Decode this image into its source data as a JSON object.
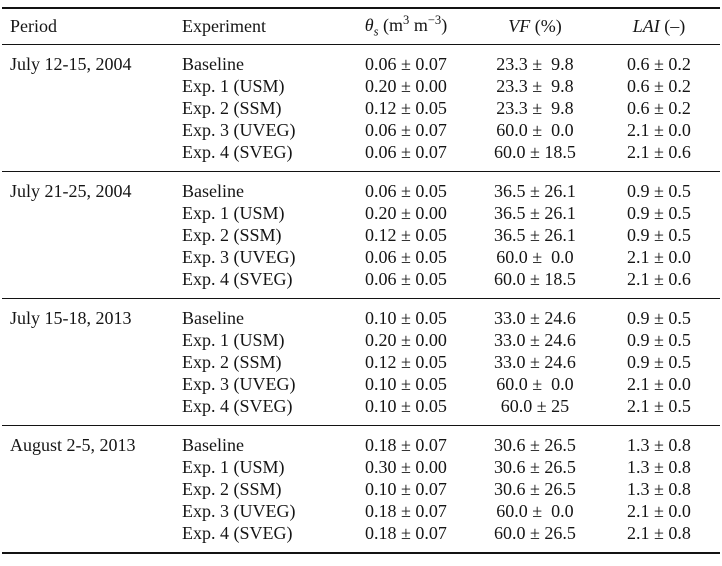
{
  "table": {
    "header": {
      "period": "Period",
      "experiment": "Experiment",
      "theta": {
        "symbol": "θ",
        "sub": "s",
        "unit_open": " (m",
        "sup1": "3",
        "unit_mid": " m",
        "sup2": "−3",
        "unit_close": ")"
      },
      "vf": {
        "name": "VF",
        "unit": " (%)"
      },
      "lai": {
        "name": "LAI",
        "unit": " (–)"
      }
    },
    "blocks": [
      {
        "period": "July 12-15, 2004",
        "rows": [
          {
            "experiment": "Baseline",
            "theta_s": "0.06 ± 0.07",
            "vf": "23.3 ±  9.8",
            "lai": "0.6 ± 0.2"
          },
          {
            "experiment": "Exp. 1 (USM)",
            "theta_s": "0.20 ± 0.00",
            "vf": "23.3 ±  9.8",
            "lai": "0.6 ± 0.2"
          },
          {
            "experiment": "Exp. 2 (SSM)",
            "theta_s": "0.12 ± 0.05",
            "vf": "23.3 ±  9.8",
            "lai": "0.6 ± 0.2"
          },
          {
            "experiment": "Exp. 3 (UVEG)",
            "theta_s": "0.06 ± 0.07",
            "vf": "60.0 ±  0.0",
            "lai": "2.1 ± 0.0"
          },
          {
            "experiment": "Exp. 4 (SVEG)",
            "theta_s": "0.06 ± 0.07",
            "vf": "60.0 ± 18.5",
            "lai": "2.1 ± 0.6"
          }
        ]
      },
      {
        "period": "July 21-25, 2004",
        "rows": [
          {
            "experiment": "Baseline",
            "theta_s": "0.06 ± 0.05",
            "vf": "36.5 ± 26.1",
            "lai": "0.9 ± 0.5"
          },
          {
            "experiment": "Exp. 1 (USM)",
            "theta_s": "0.20 ± 0.00",
            "vf": "36.5 ± 26.1",
            "lai": "0.9 ± 0.5"
          },
          {
            "experiment": "Exp. 2 (SSM)",
            "theta_s": "0.12 ± 0.05",
            "vf": "36.5 ± 26.1",
            "lai": "0.9 ± 0.5"
          },
          {
            "experiment": "Exp. 3 (UVEG)",
            "theta_s": "0.06 ± 0.05",
            "vf": "60.0 ±  0.0",
            "lai": "2.1 ± 0.0"
          },
          {
            "experiment": "Exp. 4 (SVEG)",
            "theta_s": "0.06 ± 0.05",
            "vf": "60.0 ± 18.5",
            "lai": "2.1 ± 0.6"
          }
        ]
      },
      {
        "period": "July 15-18, 2013",
        "rows": [
          {
            "experiment": "Baseline",
            "theta_s": "0.10 ± 0.05",
            "vf": "33.0 ± 24.6",
            "lai": "0.9 ± 0.5"
          },
          {
            "experiment": "Exp. 1 (USM)",
            "theta_s": "0.20 ± 0.00",
            "vf": "33.0 ± 24.6",
            "lai": "0.9 ± 0.5"
          },
          {
            "experiment": "Exp. 2 (SSM)",
            "theta_s": "0.12 ± 0.05",
            "vf": "33.0 ± 24.6",
            "lai": "0.9 ± 0.5"
          },
          {
            "experiment": "Exp. 3 (UVEG)",
            "theta_s": "0.10 ± 0.05",
            "vf": "60.0 ±  0.0",
            "lai": "2.1 ± 0.0"
          },
          {
            "experiment": "Exp. 4 (SVEG)",
            "theta_s": "0.10 ± 0.05",
            "vf": "60.0 ± 25",
            "lai": "2.1 ± 0.5"
          }
        ]
      },
      {
        "period": "August 2-5, 2013",
        "rows": [
          {
            "experiment": "Baseline",
            "theta_s": "0.18 ± 0.07",
            "vf": "30.6 ± 26.5",
            "lai": "1.3 ± 0.8"
          },
          {
            "experiment": "Exp. 1 (USM)",
            "theta_s": "0.30 ± 0.00",
            "vf": "30.6 ± 26.5",
            "lai": "1.3 ± 0.8"
          },
          {
            "experiment": "Exp. 2 (SSM)",
            "theta_s": "0.10 ± 0.07",
            "vf": "30.6 ± 26.5",
            "lai": "1.3 ± 0.8"
          },
          {
            "experiment": "Exp. 3 (UVEG)",
            "theta_s": "0.18 ± 0.07",
            "vf": "60.0 ±  0.0",
            "lai": "2.1 ± 0.0"
          },
          {
            "experiment": "Exp. 4 (SVEG)",
            "theta_s": "0.18 ± 0.07",
            "vf": "60.0 ± 26.5",
            "lai": "2.1 ± 0.8"
          }
        ]
      }
    ]
  },
  "colors": {
    "text": "#151515",
    "rule": "#131313",
    "background": "#ffffff"
  }
}
